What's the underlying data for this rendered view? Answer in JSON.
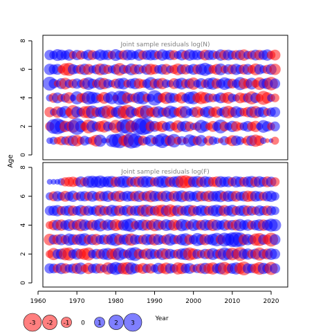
{
  "chart_data": {
    "type": "scatter",
    "subtype": "bubble",
    "ylabel": "Age",
    "xlabel": "Year",
    "x_range": [
      1963,
      2021
    ],
    "x_ticks": [
      "1960",
      "1970",
      "1980",
      "1990",
      "2000",
      "2010",
      "2020"
    ],
    "x_tick_values": [
      1960,
      1970,
      1980,
      1990,
      2000,
      2010,
      2020
    ],
    "positive_color": "#0000ff",
    "negative_color": "#ff0000",
    "panels": [
      {
        "title": "Joint sample residuals log(N)",
        "ylim": [
          0,
          8
        ],
        "y_ticks": [
          "0",
          "2",
          "4",
          "6",
          "8"
        ],
        "y_tick_values": [
          0,
          2,
          4,
          6,
          8
        ],
        "ages": [
          1,
          2,
          3,
          4,
          5,
          6,
          7
        ],
        "residuals": [
          [
            0.4,
            0.6,
            -0.5,
            -0.8,
            0.7,
            -0.9,
            1.1,
            -1.2,
            -0.6,
            0.9,
            0.5,
            -0.7,
            -1.3,
            1.4,
            0.3,
            -0.2,
            1.5,
            1.8,
            2.1,
            -1.0,
            -1.6,
            2.3,
            1.9,
            1.0,
            -0.9,
            0.6,
            1.2,
            -0.5,
            1.3,
            2.0,
            1.1,
            -1.1,
            1.7,
            -0.6,
            0.8,
            -0.4,
            1.5,
            1.0,
            -0.8,
            1.2,
            0.3,
            -0.9,
            0.7,
            0.4,
            -0.3,
            0.8,
            -0.5,
            -1.1,
            1.0,
            0.7,
            -0.3,
            -0.9,
            1.1,
            -1.4,
            -1.0,
            0.4,
            -0.2,
            0.2,
            -0.6
          ],
          [
            -0.8,
            2.0,
            2.4,
            1.6,
            -1.2,
            0.9,
            -1.5,
            2.6,
            1.2,
            -0.7,
            -1.8,
            1.3,
            0.8,
            -1.1,
            -1.4,
            0.9,
            0.6,
            -1.6,
            -0.9,
            1.9,
            2.1,
            -1.3,
            -0.6,
            2.5,
            2.8,
            2.2,
            -1.0,
            1.1,
            -0.8,
            -1.2,
            0.7,
            1.0,
            -0.6,
            -1.4,
            0.9,
            1.2,
            -0.9,
            0.5,
            -0.7,
            1.6,
            1.0,
            -0.5,
            -1.1,
            0.8,
            1.8,
            -0.9,
            0.6,
            1.2,
            -1.0,
            -0.6,
            0.7,
            1.1,
            -0.8,
            -1.2,
            0.5,
            1.5,
            1.0,
            -0.6,
            0.9
          ],
          [
            -1.0,
            0.5,
            -1.2,
            0.9,
            1.4,
            -0.6,
            -1.8,
            1.2,
            0.7,
            -1.3,
            -1.5,
            1.6,
            -0.9,
            1.0,
            1.4,
            -1.7,
            -1.1,
            0.9,
            1.6,
            -1.4,
            -2.0,
            1.2,
            0.6,
            -1.0,
            -1.6,
            1.8,
            -0.8,
            -1.1,
            1.3,
            0.8,
            -0.9,
            1.6,
            1.1,
            -0.7,
            -1.3,
            1.4,
            0.5,
            0.9,
            -1.2,
            -0.6,
            1.0,
            1.4,
            -0.8,
            -1.2,
            0.6,
            1.1,
            -1.5,
            -0.9,
            1.3,
            0.8,
            -0.7,
            -1.0,
            1.2,
            -1.4,
            0.9,
            1.1,
            -0.6,
            0.8,
            1.0
          ],
          [
            0.5,
            -0.9,
            1.1,
            -0.6,
            0.8,
            -1.2,
            0.4,
            1.6,
            -0.8,
            -1.0,
            1.7,
            1.4,
            1.1,
            -0.6,
            -1.3,
            0.9,
            1.5,
            -0.4,
            1.9,
            1.8,
            -1.1,
            0.7,
            -0.9,
            1.4,
            1.6,
            -0.7,
            0.6,
            2.2,
            1.0,
            -0.8,
            -1.4,
            1.1,
            0.9,
            -0.6,
            -1.2,
            0.7,
            1.4,
            1.6,
            -0.9,
            -1.5,
            -1.2,
            0.8,
            -0.7,
            0.6,
            1.1,
            -0.9,
            -1.3,
            0.7,
            0.5,
            -1.1,
            -0.8,
            0.9,
            -1.6,
            1.0,
            -0.6,
            -1.8,
            -1.2,
            0.6,
            -0.7
          ],
          [
            1.8,
            0.9,
            -0.5,
            1.1,
            -1.3,
            0.7,
            -0.8,
            1.0,
            0.6,
            -1.1,
            1.5,
            0.9,
            -0.7,
            1.4,
            -1.2,
            0.8,
            0.5,
            -0.9,
            1.1,
            1.3,
            -0.6,
            0.9,
            1.2,
            -1.0,
            -0.7,
            0.8,
            1.6,
            -0.9,
            1.0,
            -1.2,
            0.7,
            0.5,
            -1.1,
            0.9,
            1.3,
            -0.8,
            1.0,
            -1.4,
            0.6,
            1.1,
            -0.7,
            1.2,
            1.4,
            -1.0,
            0.8,
            1.5,
            1.0,
            -0.9,
            0.7,
            1.6,
            -1.1,
            -0.8,
            1.3,
            -0.6,
            -1.5,
            0.9,
            1.2,
            -1.7,
            1.0
          ],
          [
            1.2,
            0.9,
            1.1,
            -0.6,
            -1.4,
            -1.6,
            1.0,
            0.7,
            -0.9,
            1.2,
            -1.1,
            0.6,
            0.9,
            -1.3,
            1.1,
            -0.8,
            0.6,
            1.0,
            -1.5,
            0.8,
            -0.7,
            1.3,
            -1.0,
            0.9,
            -0.6,
            1.1,
            -1.2,
            -0.9,
            0.7,
            1.0,
            -1.1,
            0.6,
            -0.8,
            -1.3,
            0.9,
            -1.0,
            0.7,
            1.1,
            -0.9,
            1.2,
            1.6,
            1.0,
            -0.7,
            -1.1,
            1.3,
            -0.6,
            1.0,
            -0.9,
            1.2,
            0.8,
            -1.0,
            1.1,
            -0.7,
            -1.3,
            1.0,
            0.6,
            -0.8,
            1.1,
            -1.2
          ],
          [
            1.0,
            0.7,
            1.3,
            1.1,
            0.8,
            1.2,
            -0.6,
            1.0,
            -0.8,
            0.6,
            1.1,
            -0.9,
            0.7,
            1.2,
            0.9,
            1.0,
            -0.7,
            1.3,
            0.8,
            -0.9,
            1.1,
            1.0,
            0.6,
            1.2,
            -0.8,
            0.9,
            1.1,
            1.0,
            -0.7,
            1.2,
            0.8,
            1.0,
            -0.9,
            0.6,
            1.1,
            -0.8,
            1.2,
            0.9,
            1.0,
            0.7,
            -1.1,
            1.0,
            0.9,
            -0.6,
            1.2,
            -1.0,
            1.1,
            0.8,
            -0.9,
            1.0,
            -1.2,
            0.7,
            -0.8,
            1.1,
            -1.0,
            0.9,
            1.2,
            -0.7,
            -1.1
          ]
        ]
      },
      {
        "title": "Joint sample residuals log(F)",
        "ylim": [
          0,
          8
        ],
        "y_ticks": [
          "0",
          "2",
          "4",
          "6",
          "8"
        ],
        "y_tick_values": [
          0,
          2,
          4,
          6,
          8
        ],
        "ages": [
          1,
          2,
          3,
          4,
          5,
          6,
          7
        ],
        "residuals": [
          [
            1.0,
            0.9,
            -0.8,
            1.2,
            -1.0,
            0.7,
            0.9,
            -1.1,
            1.3,
            -0.6,
            -1.2,
            0.8,
            1.0,
            -0.9,
            0.6,
            -1.4,
            1.1,
            1.6,
            1.2,
            -1.3,
            -1.5,
            1.4,
            0.9,
            -0.7,
            -1.1,
            0.8,
            -1.0,
            0.6,
            1.2,
            -0.9,
            -1.3,
            1.0,
            0.7,
            -1.4,
            -1.2,
            0.9,
            1.1,
            -0.6,
            0.8,
            -1.0,
            1.2,
            -1.1,
            -1.4,
            0.9,
            1.3,
            -1.6,
            -0.9,
            1.1,
            1.4,
            -1.2,
            -1.8,
            1.0,
            0.8,
            -1.0,
            -1.5,
            1.2,
            0.9,
            -1.6,
            1.0
          ],
          [
            -0.6,
            -1.4,
            0.9,
            1.1,
            -1.5,
            -1.6,
            0.8,
            1.2,
            -1.0,
            -1.3,
            -1.6,
            0.7,
            1.0,
            -0.9,
            1.2,
            1.4,
            -1.1,
            -1.3,
            1.6,
            0.9,
            -0.7,
            1.5,
            1.8,
            -1.0,
            0.8,
            -1.2,
            1.1,
            0.9,
            -0.8,
            1.3,
            -1.1,
            1.0,
            0.7,
            -0.9,
            1.2,
            1.4,
            -1.6,
            -1.2,
            0.9,
            -0.7,
            1.0,
            -1.0,
            1.3,
            0.8,
            -1.1,
            1.6,
            1.2,
            -1.5,
            0.9,
            -1.8,
            1.0,
            1.2,
            -0.8,
            1.1,
            -1.6,
            0.9,
            -1.1,
            1.3,
            1.0
          ],
          [
            -1.3,
            0.9,
            -1.0,
            1.2,
            -0.8,
            1.4,
            1.1,
            -1.0,
            1.3,
            1.5,
            -0.9,
            1.1,
            -1.2,
            0.8,
            1.0,
            -0.9,
            1.2,
            1.6,
            -1.1,
            0.9,
            1.3,
            -1.4,
            1.0,
            0.8,
            -0.9,
            1.2,
            1.0,
            -1.3,
            1.1,
            0.7,
            -1.0,
            1.4,
            0.9,
            -0.8,
            1.2,
            1.5,
            -1.0,
            0.8,
            1.6,
            1.1,
            -1.2,
            0.9,
            1.3,
            1.7,
            -0.9,
            1.8,
            1.4,
            2.0,
            2.2,
            1.9,
            -1.1,
            1.2,
            0.8,
            -1.4,
            -1.6,
            1.0,
            -0.9,
            -1.8,
            1.1
          ],
          [
            -0.6,
            -1.0,
            1.1,
            -1.2,
            0.9,
            1.3,
            -0.9,
            1.0,
            -1.4,
            1.2,
            0.8,
            -1.1,
            1.0,
            1.5,
            -0.8,
            1.2,
            1.0,
            -1.3,
            -0.9,
            1.1,
            1.4,
            1.8,
            -0.7,
            1.0,
            1.2,
            -1.1,
            0.9,
            -1.4,
            1.1,
            -0.8,
            1.3,
            1.0,
            -1.2,
            -0.9,
            1.4,
            1.1,
            -0.7,
            1.3,
            0.9,
            -1.0,
            1.2,
            1.0,
            -1.3,
            1.1,
            0.8,
            1.2,
            -0.9,
            1.0,
            -1.1,
            1.4,
            0.9,
            1.2,
            -0.8,
            1.0,
            1.3,
            -1.2,
            1.1,
            1.6,
            1.4
          ],
          [
            0.9,
            1.0,
            1.2,
            -0.8,
            0.9,
            1.1,
            -1.0,
            0.8,
            1.2,
            -0.9,
            1.0,
            0.7,
            1.1,
            -1.2,
            0.9,
            -0.8,
            1.3,
            1.0,
            -1.1,
            0.8,
            1.2,
            -0.9,
            1.0,
            1.1,
            -1.3,
            1.4,
            -1.0,
            0.9,
            -1.2,
            -1.4,
            1.1,
            -1.5,
            -1.0,
            1.2,
            -0.9,
            1.0,
            1.3,
            -1.1,
            0.8,
            1.2,
            1.0,
            -0.9,
            1.1,
            1.4,
            1.0,
            -1.2,
            0.9,
            1.3,
            -0.8,
            1.0,
            1.2,
            -1.0,
            0.9,
            -0.7,
            1.1,
            0.8,
            -1.0,
            0.9,
            0.7
          ],
          [
            0.6,
            -0.9,
            1.0,
            0.7,
            -1.1,
            0.8,
            1.2,
            -0.6,
            0.9,
            1.0,
            -0.8,
            1.1,
            0.7,
            -1.0,
            0.9,
            1.2,
            -0.7,
            1.0,
            -1.2,
            0.8,
            1.1,
            0.9,
            -1.0,
            1.2,
            -0.8,
            1.0,
            -1.3,
            1.1,
            0.9,
            -1.0,
            1.2,
            0.8,
            -1.1,
            1.0,
            1.3,
            -0.9,
            1.1,
            0.8,
            1.2,
            -1.0,
            0.9,
            -1.2,
            1.0,
            1.1,
            1.3,
            -0.9,
            1.2,
            1.0,
            -1.1,
            0.8,
            1.0,
            -1.2,
            -1.0,
            1.1,
            0.9,
            -0.8,
            1.0,
            1.2,
            0.7
          ],
          [
            0.3,
            0.3,
            0.3,
            0.5,
            -0.8,
            -0.9,
            -1.0,
            -0.7,
            1.1,
            -0.8,
            1.3,
            1.4,
            1.2,
            1.5,
            1.0,
            1.2,
            1.3,
            -1.0,
            1.1,
            1.4,
            1.2,
            -0.9,
            1.0,
            -1.1,
            1.2,
            1.3,
            1.0,
            -0.8,
            1.1,
            1.4,
            1.2,
            -1.0,
            1.1,
            1.3,
            -1.5,
            -1.6,
            -1.2,
            1.1,
            1.3,
            -1.0,
            1.2,
            1.0,
            -0.9,
            -1.1,
            1.2,
            1.0,
            1.1,
            -0.8,
            1.2,
            1.0,
            -0.9,
            1.1,
            1.3,
            -1.0,
            1.2,
            0.9,
            -1.1,
            1.0,
            -0.8
          ]
        ]
      }
    ],
    "legend": {
      "placement": "bottom-left",
      "values": [
        -3,
        -2,
        -1,
        0,
        1,
        2,
        3
      ],
      "labels": [
        "-3",
        "-2",
        "-1",
        "0",
        "1",
        "2",
        "3"
      ]
    }
  }
}
